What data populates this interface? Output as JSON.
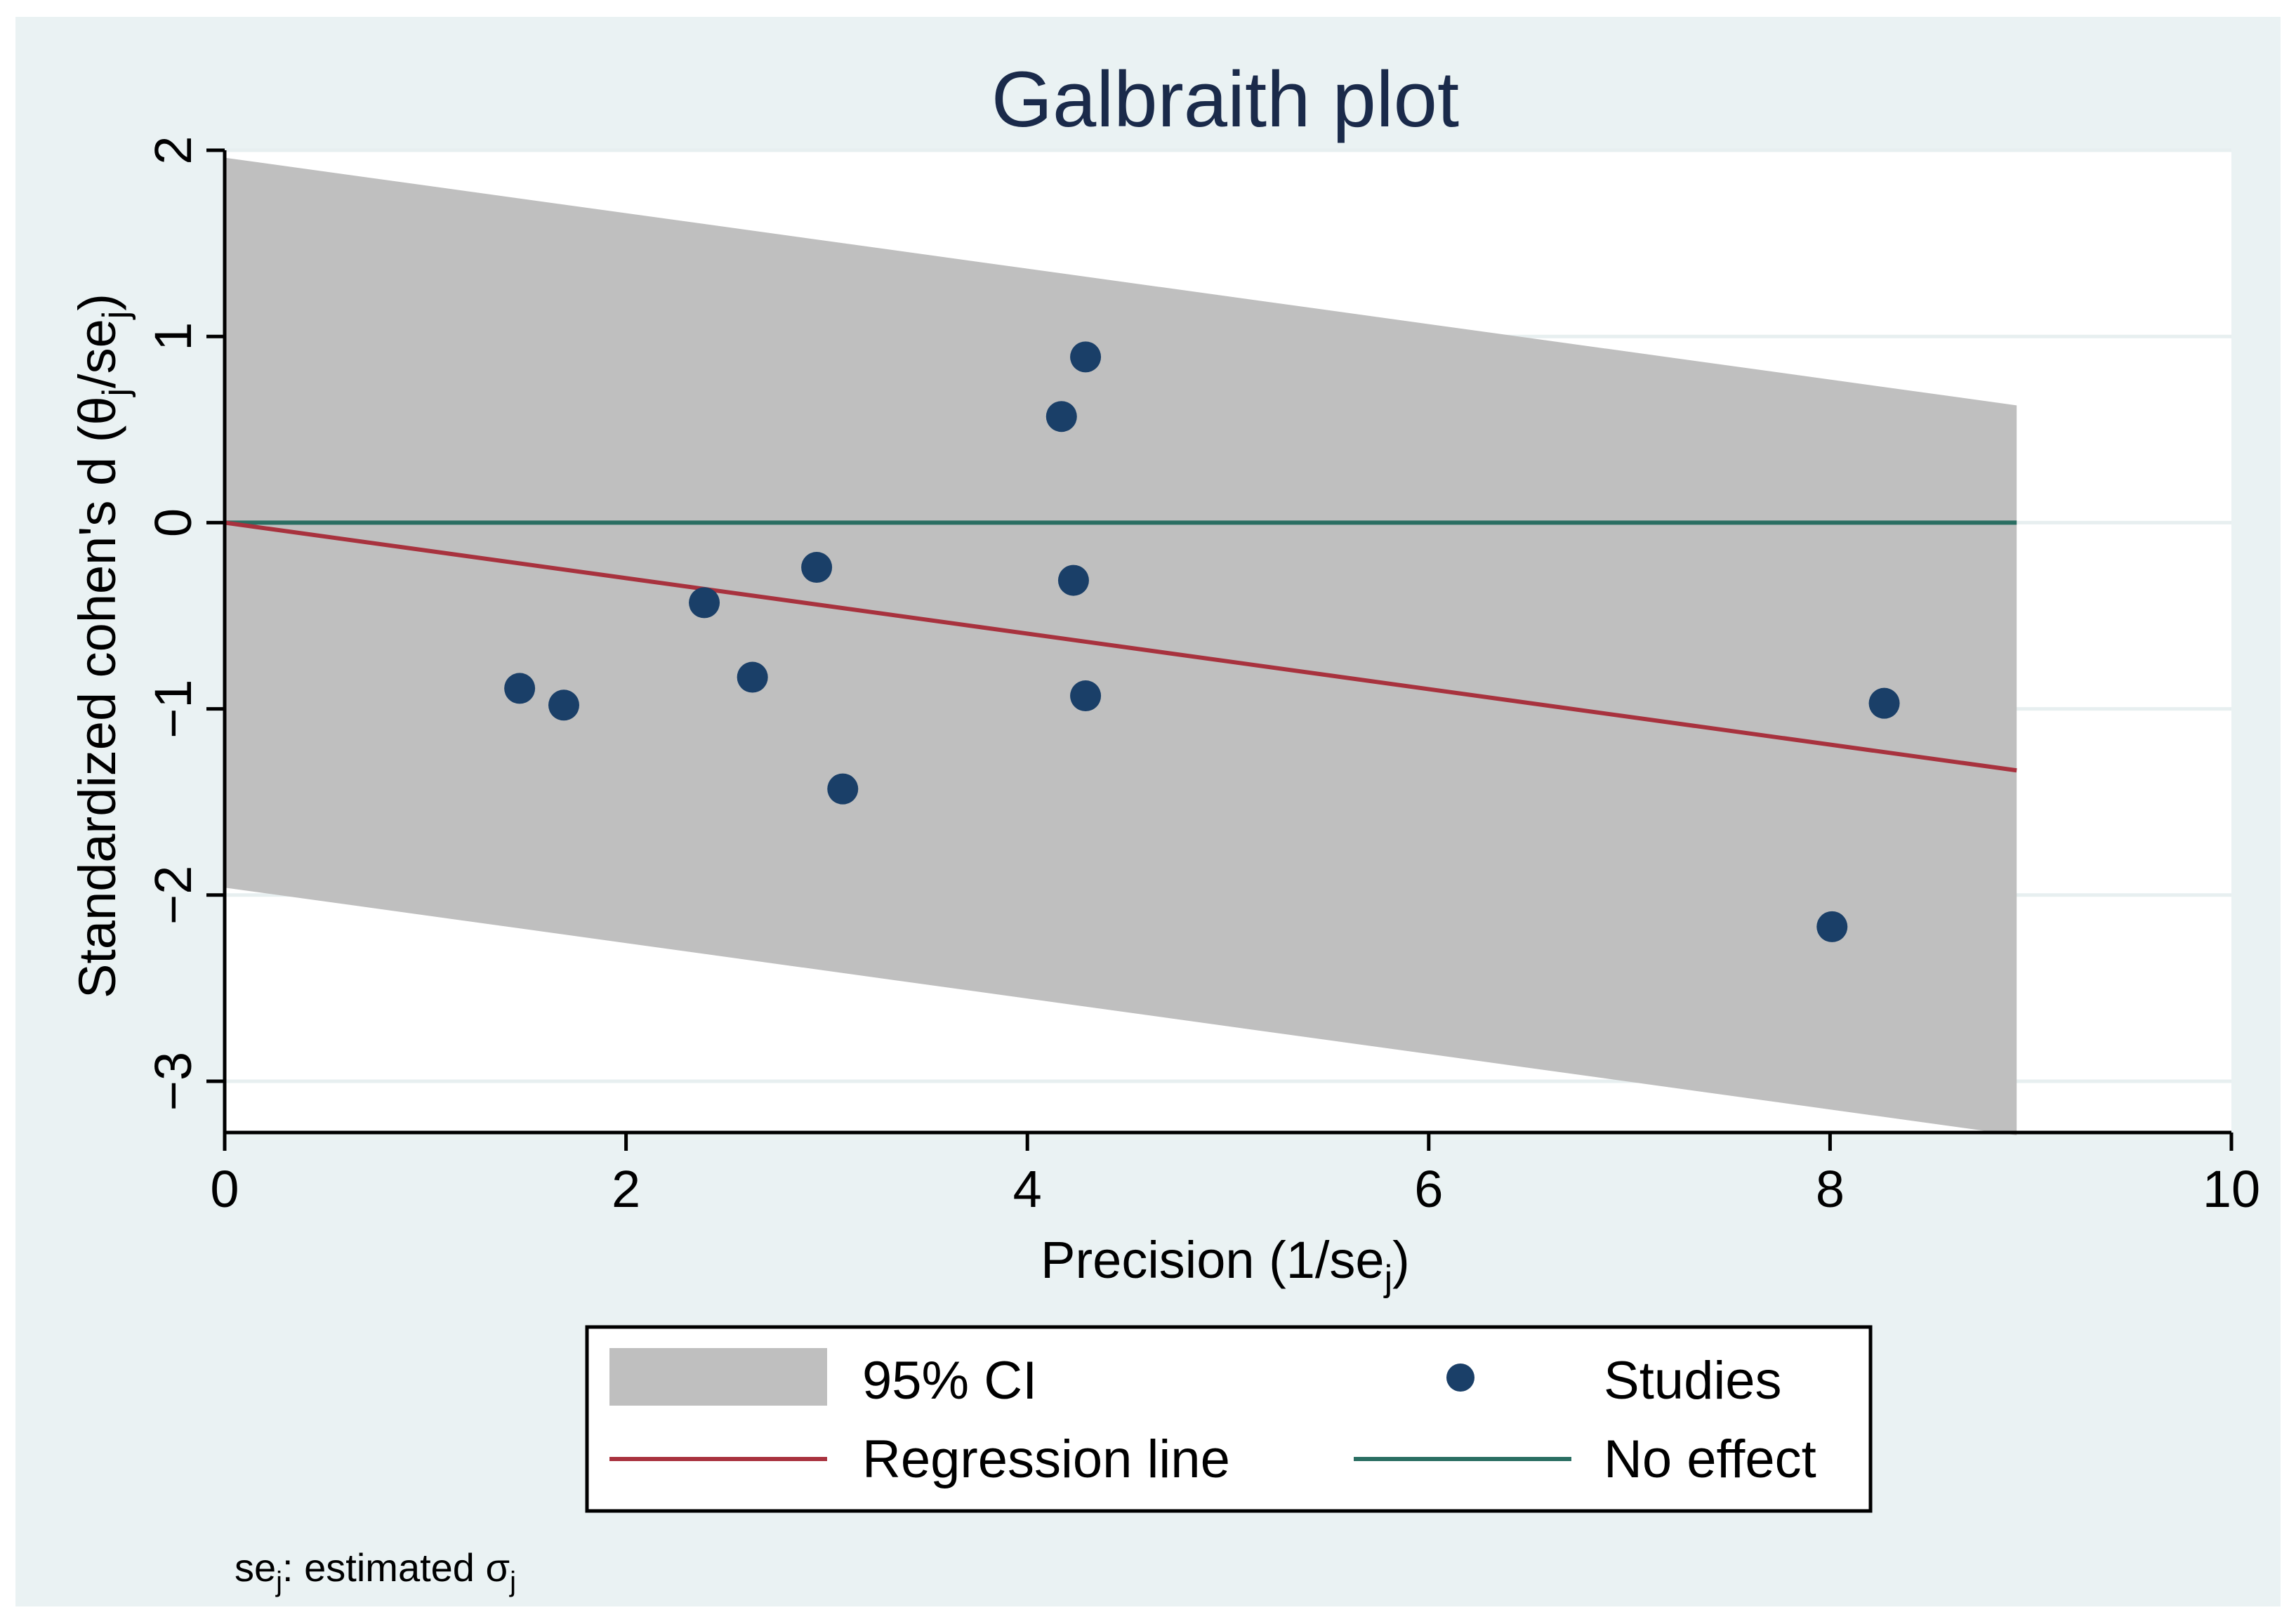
{
  "chart_data": {
    "type": "scatter",
    "title": "Galbraith plot",
    "xlabel": {
      "main": "Precision (1/se",
      "sub": "j",
      "end": ")"
    },
    "ylabel": {
      "p1": "Standardized cohen's d (θ",
      "s1": "j",
      "p2": "/se",
      "s2": "j",
      "p3": ")"
    },
    "xlim": [
      0,
      10
    ],
    "ylim": [
      -3.3,
      2
    ],
    "xticks": [
      0,
      2,
      4,
      6,
      8,
      10
    ],
    "xtick_labels": [
      "0",
      "2",
      "4",
      "6",
      "8",
      "10"
    ],
    "yticks": [
      -3,
      -2,
      -1,
      0,
      1,
      2
    ],
    "ytick_labels": [
      "−3",
      "−2",
      "−1",
      "0",
      "1",
      "2"
    ],
    "grid": true,
    "ci_band": {
      "x_end": 8.93,
      "upper_start": 1.96,
      "upper_end": 0.63,
      "lower_start": -1.96,
      "lower_end": -3.29
    },
    "regression_line": {
      "slope": -0.149,
      "intercept": 0,
      "x_end": 8.93
    },
    "no_effect_line": {
      "y": 0,
      "x_end": 8.93
    },
    "series": [
      {
        "name": "Studies",
        "points": [
          {
            "x": 1.47,
            "y": -0.89
          },
          {
            "x": 1.69,
            "y": -0.98
          },
          {
            "x": 2.39,
            "y": -0.43
          },
          {
            "x": 2.63,
            "y": -0.83
          },
          {
            "x": 2.95,
            "y": -0.24
          },
          {
            "x": 3.08,
            "y": -1.43
          },
          {
            "x": 4.17,
            "y": 0.57
          },
          {
            "x": 4.23,
            "y": -0.31
          },
          {
            "x": 4.29,
            "y": 0.89
          },
          {
            "x": 4.29,
            "y": -0.93
          },
          {
            "x": 8.01,
            "y": -2.17
          },
          {
            "x": 8.27,
            "y": -0.97
          }
        ]
      }
    ],
    "legend": {
      "position": "bottom",
      "items": {
        "ci": "95% CI",
        "studies": "Studies",
        "regression": "Regression line",
        "no_effect": "No effect"
      }
    },
    "note": {
      "p1": "se",
      "s1": "j",
      "p2": ": estimated σ",
      "s2": "j"
    }
  },
  "colors": {
    "background_outer": "#eaf2f3",
    "plot_background": "#ffffff",
    "ci_band": "#bfbfbf",
    "points": "#1a3f68",
    "regression": "#a8323e",
    "no_effect": "#2a6e62",
    "grid": "#e7eff0",
    "title": "#1a2a4a"
  }
}
